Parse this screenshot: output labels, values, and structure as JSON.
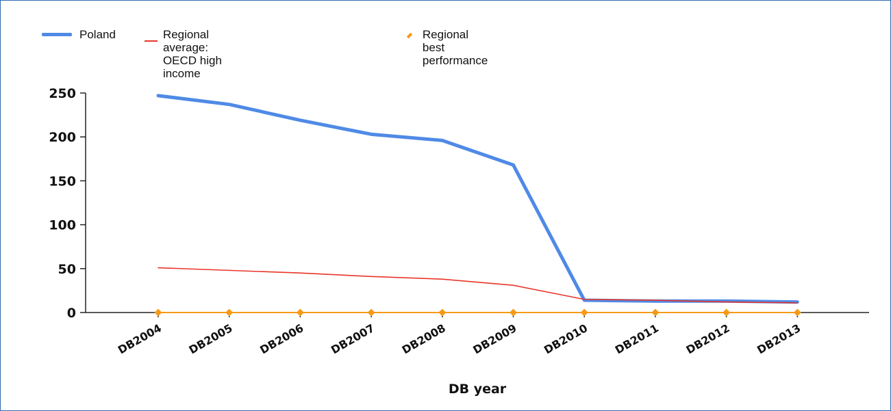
{
  "chart_data": {
    "type": "line",
    "title": "",
    "xlabel": "DB year",
    "ylabel": "",
    "categories": [
      "DB2004",
      "DB2005",
      "DB2006",
      "DB2007",
      "DB2008",
      "DB2009",
      "DB2010",
      "DB2011",
      "DB2012",
      "DB2013"
    ],
    "ylim": [
      0,
      250
    ],
    "yticks": [
      0,
      50,
      100,
      150,
      200,
      250
    ],
    "grid": false,
    "legend_position": "top-left",
    "series": [
      {
        "name": "Poland",
        "color": "#4f8ae6",
        "style": "thick-line",
        "values": [
          247,
          237,
          219,
          203,
          196,
          168,
          14,
          13,
          13,
          12
        ]
      },
      {
        "name": "Regional average: OECD high income",
        "color": "#e8352a",
        "style": "thin-line",
        "values": [
          51,
          48,
          45,
          41,
          38,
          31,
          15,
          14,
          12,
          11
        ]
      },
      {
        "name": "Regional best performance",
        "color": "#f59a17",
        "style": "diamond-markers",
        "values": [
          0,
          0,
          0,
          0,
          0,
          0,
          0,
          0,
          0,
          0
        ]
      }
    ]
  },
  "legend": {
    "items": [
      {
        "label": "Poland",
        "label_lines": [
          "Poland"
        ]
      },
      {
        "label": "Regional average: OECD high income",
        "label_lines": [
          "Regional average: OECD high",
          "income"
        ]
      },
      {
        "label": "Regional best performance",
        "label_lines": [
          "Regional best performance"
        ]
      }
    ]
  }
}
